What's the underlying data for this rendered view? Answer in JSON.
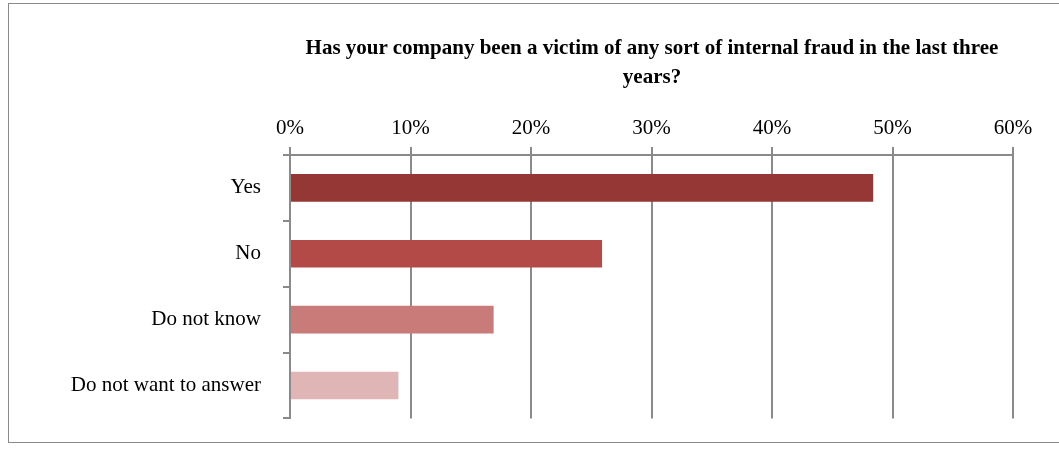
{
  "chart_data": {
    "type": "bar",
    "orientation": "horizontal",
    "title": "Has your company been a victim of any sort of internal fraud in the last three years?",
    "categories": [
      "Yes",
      "No",
      "Do not know",
      "Do not want to answer"
    ],
    "values": [
      48.4,
      25.9,
      16.9,
      9.0
    ],
    "colors": [
      "#953735",
      "#b34a47",
      "#c97b79",
      "#dfb5b5"
    ],
    "xlim": [
      0,
      60
    ],
    "xticks": [
      {
        "value": 0,
        "label": "0%"
      },
      {
        "value": 10,
        "label": "10%"
      },
      {
        "value": 20,
        "label": "20%"
      },
      {
        "value": 30,
        "label": "30%"
      },
      {
        "value": 40,
        "label": "40%"
      },
      {
        "value": 50,
        "label": "50%"
      },
      {
        "value": 60,
        "label": "60%"
      }
    ],
    "grid": "x",
    "legend": false
  }
}
